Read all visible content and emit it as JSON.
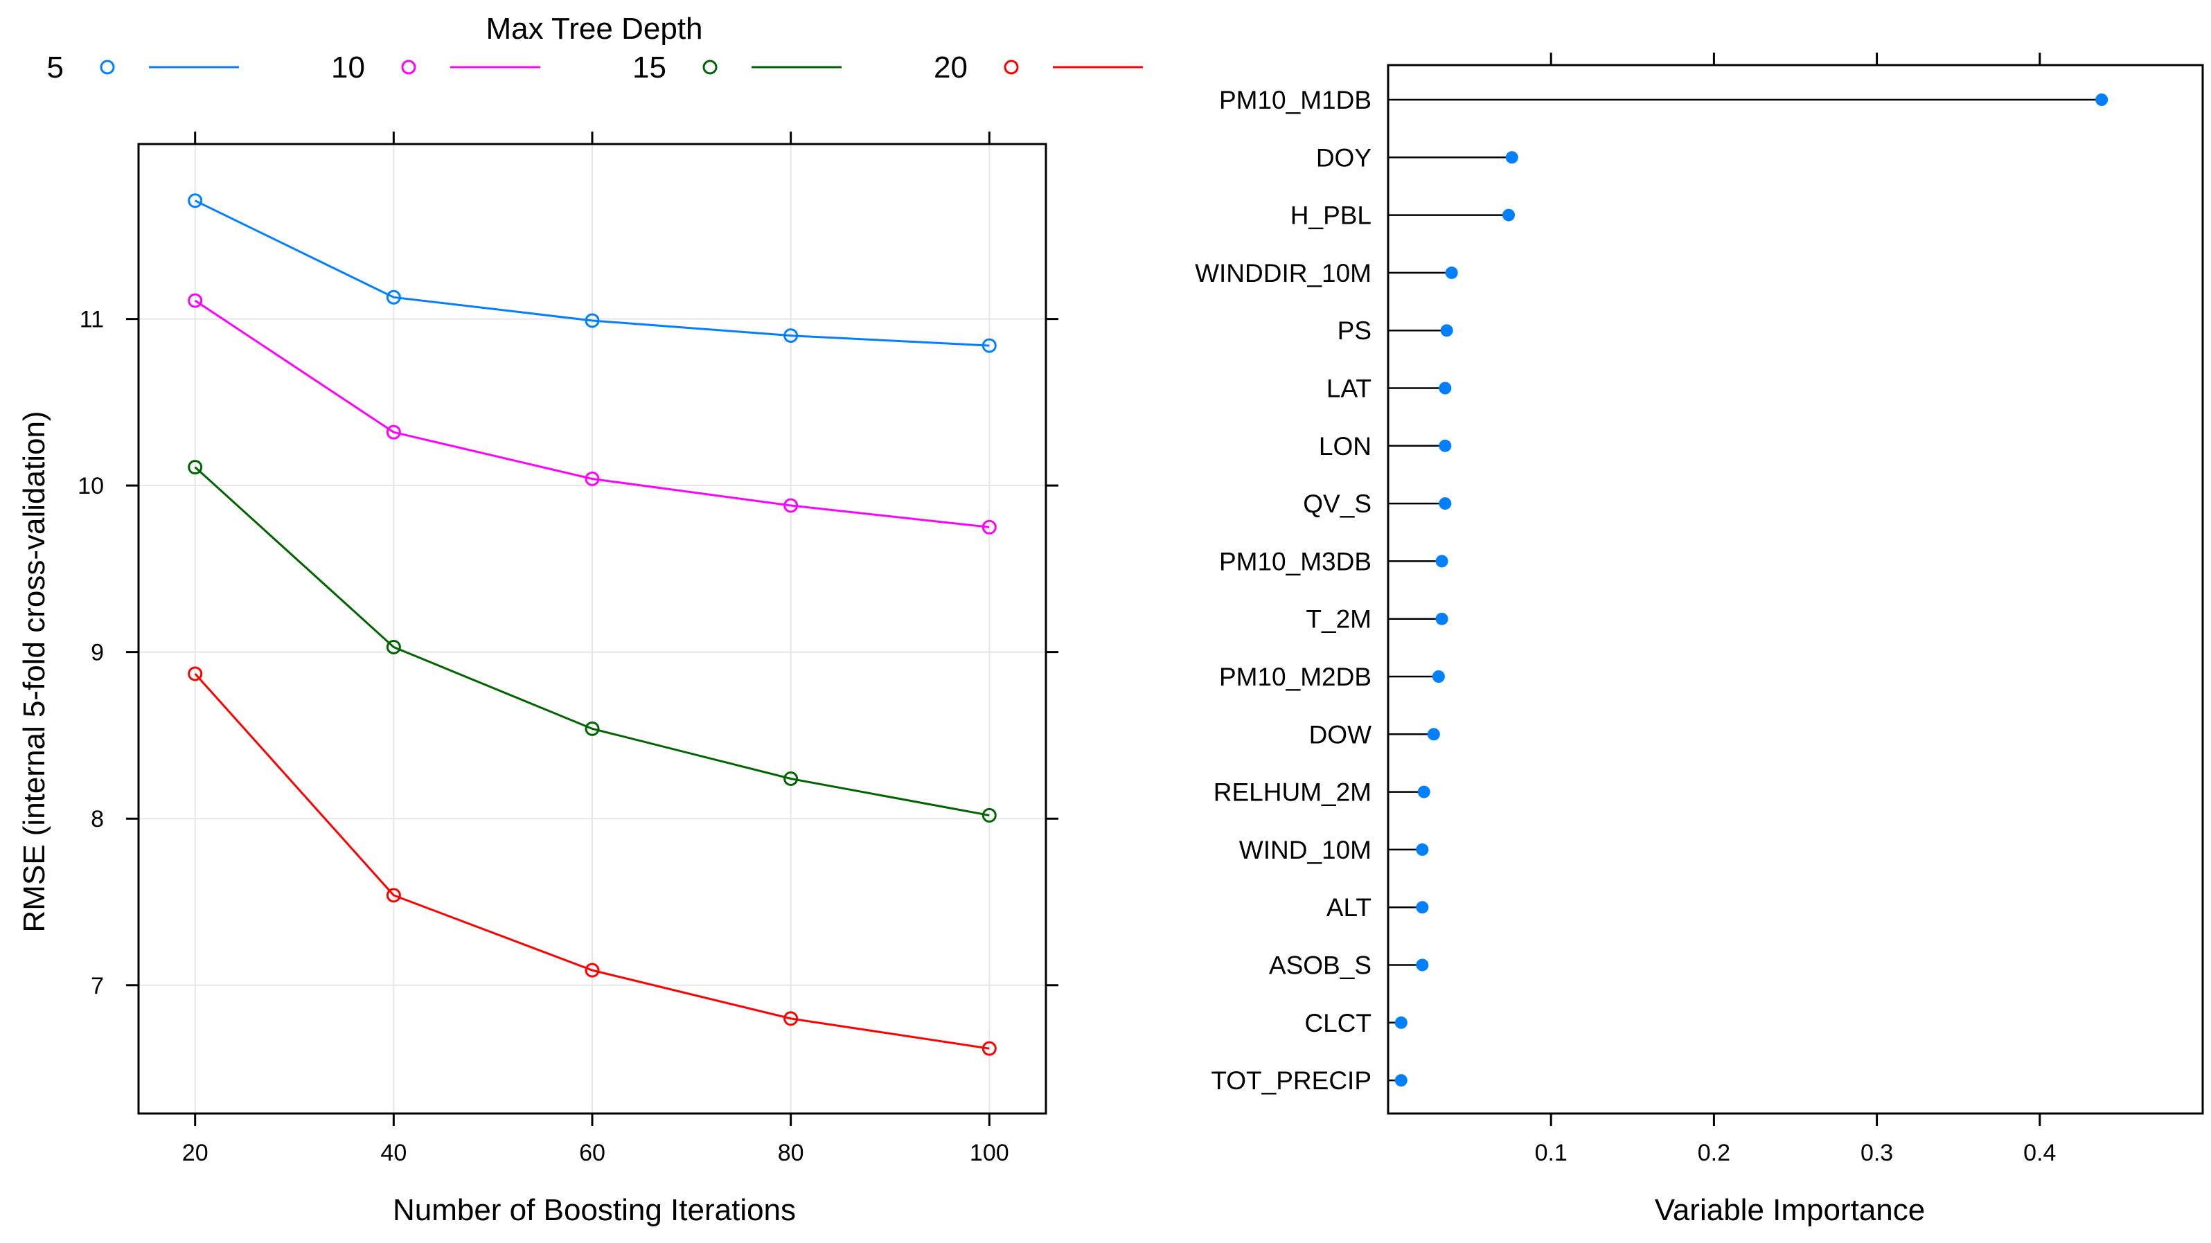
{
  "chart_data": [
    {
      "type": "line",
      "legend": {
        "title": "Max Tree Depth",
        "placement": "top"
      },
      "xlabel": "Number of Boosting Iterations",
      "ylabel": "RMSE (internal 5-fold cross-validation)",
      "x": [
        20,
        40,
        60,
        80,
        100
      ],
      "xticks": [
        20,
        40,
        60,
        80,
        100
      ],
      "xtick_labels": [
        "20",
        "40",
        "60",
        "80",
        "100"
      ],
      "xlim": [
        14.3,
        105.7
      ],
      "yticks": [
        7,
        8,
        9,
        10,
        11
      ],
      "ytick_labels": [
        "7",
        "8",
        "9",
        "10",
        "11"
      ],
      "ylim": [
        6.23,
        12.05
      ],
      "grid": true,
      "series": [
        {
          "name": "5",
          "color": "#0080ff",
          "values": [
            11.71,
            11.13,
            10.99,
            10.9,
            10.84
          ]
        },
        {
          "name": "10",
          "color": "#ff00ff",
          "values": [
            11.11,
            10.32,
            10.04,
            9.88,
            9.75
          ]
        },
        {
          "name": "15",
          "color": "#006400",
          "values": [
            10.11,
            9.03,
            8.54,
            8.24,
            8.02
          ]
        },
        {
          "name": "20",
          "color": "#ff0000",
          "values": [
            8.87,
            7.54,
            7.09,
            6.8,
            6.62
          ]
        }
      ]
    },
    {
      "type": "dot",
      "xlabel": "Variable Importance",
      "xlim": [
        0,
        0.5
      ],
      "xticks": [
        0.1,
        0.2,
        0.3,
        0.4
      ],
      "xtick_labels": [
        "0.1",
        "0.2",
        "0.3",
        "0.4"
      ],
      "marker_color": "#0080ff",
      "categories": [
        "PM10_M1DB",
        "DOY",
        "H_PBL",
        "WINDDIR_10M",
        "PS",
        "LAT",
        "LON",
        "QV_S",
        "PM10_M3DB",
        "T_2M",
        "PM10_M2DB",
        "DOW",
        "RELHUM_2M",
        "WIND_10M",
        "ALT",
        "ASOB_S",
        "CLCT",
        "TOT_PRECIP"
      ],
      "values": [
        0.438,
        0.076,
        0.074,
        0.039,
        0.036,
        0.035,
        0.035,
        0.035,
        0.033,
        0.033,
        0.031,
        0.028,
        0.022,
        0.021,
        0.021,
        0.021,
        0.008,
        0.008
      ]
    }
  ]
}
